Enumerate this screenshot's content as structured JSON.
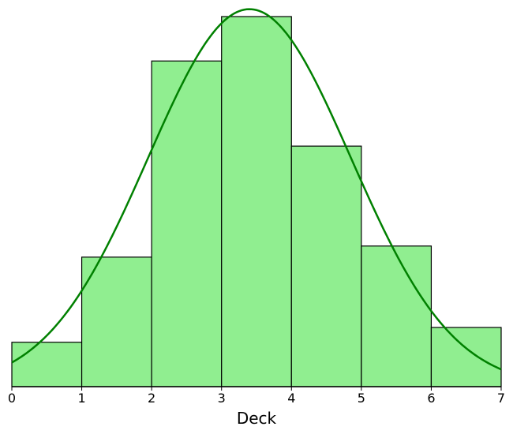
{
  "chart_data": {
    "type": "bar",
    "subtype": "histogram-with-density-curve",
    "xlabel": "Deck",
    "ylabel": "",
    "title": "",
    "xlim": [
      0,
      7
    ],
    "ylim": [
      0,
      1
    ],
    "x_ticks": [
      "0",
      "1",
      "2",
      "3",
      "4",
      "5",
      "6",
      "7"
    ],
    "bins": [
      {
        "start": 0,
        "end": 1,
        "value": 0.12
      },
      {
        "start": 1,
        "end": 2,
        "value": 0.35
      },
      {
        "start": 2,
        "end": 3,
        "value": 0.88
      },
      {
        "start": 3,
        "end": 4,
        "value": 1.0
      },
      {
        "start": 4,
        "end": 5,
        "value": 0.65
      },
      {
        "start": 5,
        "end": 6,
        "value": 0.38
      },
      {
        "start": 6,
        "end": 7,
        "value": 0.16
      }
    ],
    "curve": {
      "type": "normal",
      "mean": 3.4,
      "sd": 1.45,
      "peak": 1.02
    },
    "grid": false,
    "y_axis_visible": false,
    "colors": {
      "bar_fill": "#90ee90",
      "bar_edge": "#000000",
      "curve": "#008000"
    }
  }
}
